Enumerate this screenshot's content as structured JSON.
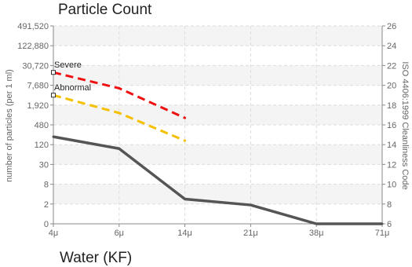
{
  "chart_data": {
    "type": "line",
    "title": "Particle Count",
    "subtitle": "Water (KF)",
    "x": [
      "4μ",
      "6μ",
      "14μ",
      "21μ",
      "38μ",
      "71μ"
    ],
    "y_ticks_left": [
      "0",
      "2",
      "8",
      "30",
      "120",
      "480",
      "1,920",
      "7,680",
      "30,720",
      "122,880",
      "491,520"
    ],
    "y_ticks_right": [
      "6",
      "8",
      "10",
      "12",
      "14",
      "16",
      "18",
      "20",
      "22",
      "24",
      "26"
    ],
    "ylabel_left": "number of particles (per 1 ml)",
    "ylabel_right": "ISO 4406:1999 Cleanliness Code",
    "code_range": [
      6,
      26
    ],
    "grid": true,
    "series": [
      {
        "name": "",
        "color": "#555555",
        "style": "solid",
        "x_index": [
          0,
          1,
          2,
          3,
          4,
          5
        ],
        "codes": [
          14.8,
          13.6,
          8.5,
          7.9,
          6.0,
          6.0
        ]
      },
      {
        "name": "Severe",
        "color": "#ee1111",
        "style": "dashed",
        "x_index": [
          0,
          1,
          2
        ],
        "codes": [
          21.3,
          19.7,
          16.7
        ]
      },
      {
        "name": "Abnormal",
        "color": "#f5c000",
        "style": "dashed",
        "x_index": [
          0,
          1,
          2
        ],
        "codes": [
          19.0,
          17.2,
          14.4
        ]
      }
    ],
    "annotations": [
      {
        "text": "Severe",
        "x_index": 0,
        "code": 21.3
      },
      {
        "text": "Abnormal",
        "x_index": 0,
        "code": 19.0
      }
    ]
  }
}
